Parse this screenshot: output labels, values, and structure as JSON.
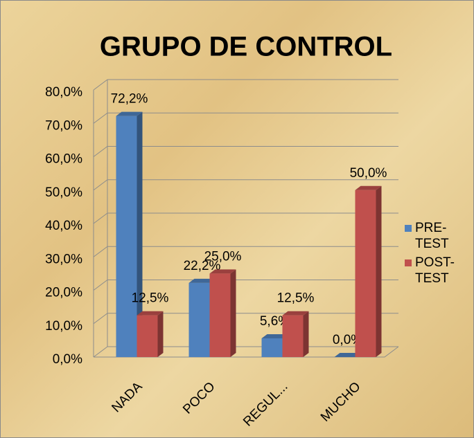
{
  "chart_data": {
    "type": "bar3d",
    "title": "GRUPO DE CONTROL",
    "categories": [
      "NADA",
      "POCO",
      "REGUL...",
      "MUCHO"
    ],
    "series": [
      {
        "name": "PRE-TEST",
        "color": "#4f81bd",
        "values": [
          72.2,
          22.2,
          5.6,
          0.0
        ],
        "value_labels": [
          "72,2%",
          "22,2%",
          "5,6%",
          "0,0%"
        ]
      },
      {
        "name": "POST-TEST",
        "color": "#c0504d",
        "values": [
          12.5,
          25.0,
          12.5,
          50.0
        ],
        "value_labels": [
          "12,5%",
          "25,0%",
          "12,5%",
          "50,0%"
        ]
      }
    ],
    "ylim": [
      0,
      80
    ],
    "yticks": [
      {
        "value": 0,
        "label": "0,0%"
      },
      {
        "value": 10,
        "label": "10,0%"
      },
      {
        "value": 20,
        "label": "20,0%"
      },
      {
        "value": 30,
        "label": "30,0%"
      },
      {
        "value": 40,
        "label": "40,0%"
      },
      {
        "value": 50,
        "label": "50,0%"
      },
      {
        "value": 60,
        "label": "60,0%"
      },
      {
        "value": 70,
        "label": "70,0%"
      },
      {
        "value": 80,
        "label": "80,0%"
      }
    ],
    "grid": true,
    "legend": "right"
  }
}
